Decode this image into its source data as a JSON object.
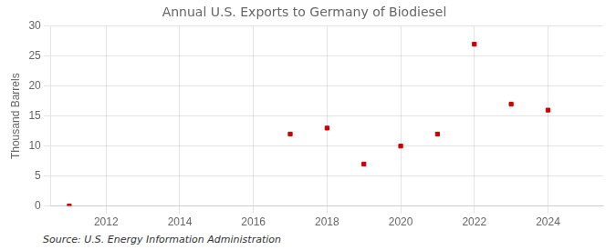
{
  "chart_data": {
    "type": "scatter",
    "title": "Annual U.S. Exports to Germany of Biodiesel",
    "ylabel": "Thousand Barrels",
    "source": "Source: U.S. Energy Information Administration",
    "x": [
      2011,
      2017,
      2018,
      2019,
      2020,
      2021,
      2022,
      2023,
      2024
    ],
    "values": [
      0,
      12,
      13,
      7,
      10,
      12,
      27,
      17,
      16
    ],
    "color": "#cc0000",
    "marker": "square",
    "xlim": [
      2010.5,
      2025.5
    ],
    "ylim": [
      0,
      30
    ],
    "xticks": [
      2012,
      2014,
      2016,
      2018,
      2020,
      2022,
      2024
    ],
    "yticks": [
      0,
      5,
      10,
      15,
      20,
      25,
      30
    ],
    "grid": true
  }
}
